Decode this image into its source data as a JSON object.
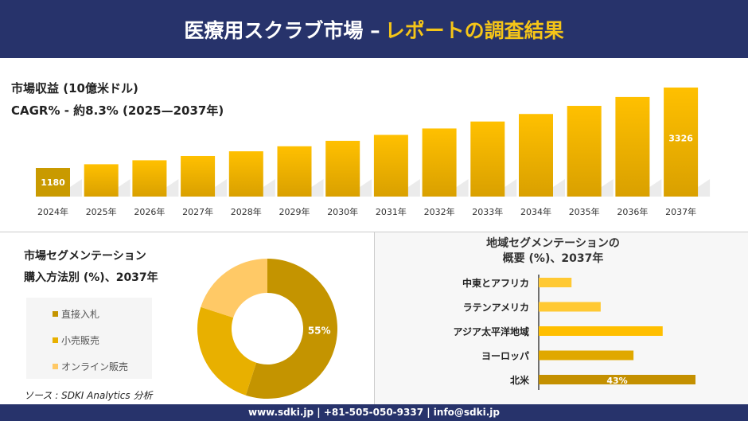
{
  "header": {
    "title_white": "医療用スクラブ市場 –",
    "title_yellow": "レポートの調査結果"
  },
  "colors": {
    "navy": "#27336b",
    "accent": "#f5c518",
    "dark_gold": "#c49400",
    "gold": "#e5b000",
    "light_gold": "#ffc966"
  },
  "revenue": {
    "label": "市場収益 (10億米ドル)",
    "cagr": "CAGR% - 約8.3% (2025—2037年)"
  },
  "segment": {
    "title1": "市場セグメンテーション",
    "title2": "購入方法別 (%)、2037年"
  },
  "region": {
    "title1": "地域セグメンテーションの",
    "title2": "概要 (%)、2037年"
  },
  "source": "ソース : SDKI Analytics 分析",
  "footer": "www.sdki.jp | +81-505-050-9337 | info@sdki.jp",
  "chart_data": [
    {
      "type": "bar",
      "title": "",
      "categories": [
        "2024年",
        "2025年",
        "2026年",
        "2027年",
        "2028年",
        "2029年",
        "2030年",
        "2031年",
        "2032年",
        "2033年",
        "2034年",
        "2035年",
        "2036年",
        "2037年"
      ],
      "values": [
        1180,
        1278,
        1384,
        1499,
        1624,
        1758,
        1904,
        2062,
        2233,
        2419,
        2620,
        2837,
        3073,
        3326
      ],
      "data_labels": {
        "0": "1180",
        "13": "3326"
      }
    },
    {
      "type": "pie",
      "subtype": "donut",
      "categories": [
        "直接入札",
        "小売販売",
        "オンライン販売"
      ],
      "values": [
        55,
        25,
        20
      ],
      "data_labels": {
        "0": "55%"
      },
      "colors": [
        "#c49400",
        "#e8b000",
        "#ffc966"
      ],
      "legend": "left"
    },
    {
      "type": "bar",
      "orientation": "horizontal",
      "categories": [
        "中東とアフリカ",
        "ラテンアメリカ",
        "アジア太平洋地域",
        "ヨーロッパ",
        "北米"
      ],
      "values": [
        9,
        17,
        34,
        26,
        43
      ],
      "data_labels": {
        "4": "43%"
      },
      "colors": [
        "#ffc933",
        "#ffc933",
        "#ffbf00",
        "#e0a800",
        "#c49000"
      ]
    }
  ]
}
